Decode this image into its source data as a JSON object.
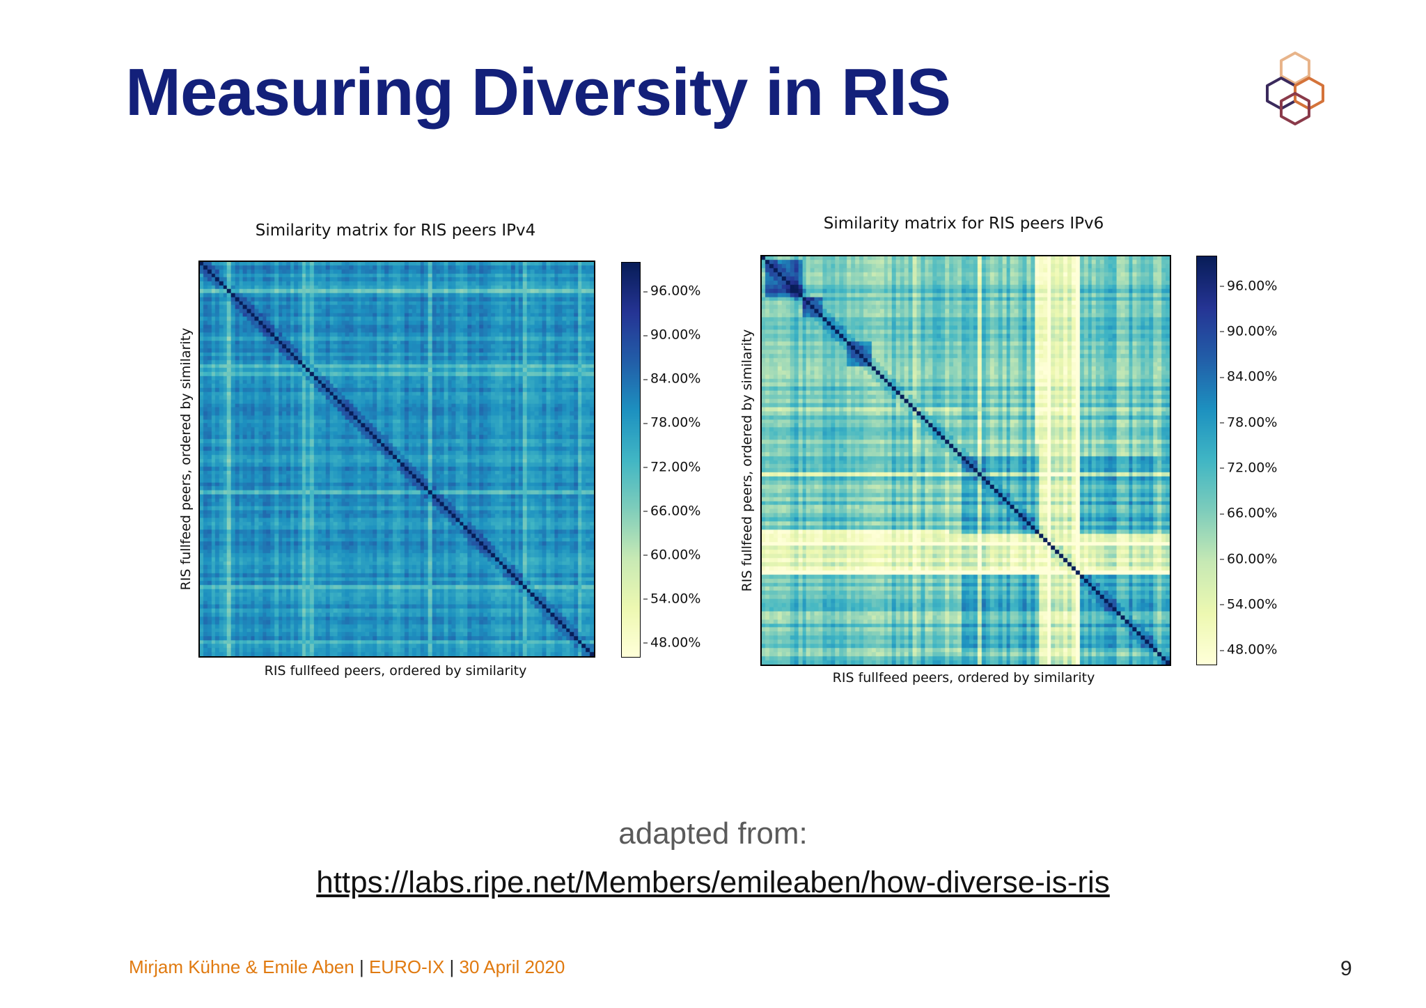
{
  "slide": {
    "title": "Measuring Diversity in RIS",
    "credit_text": "adapted from:",
    "credit_link": "https://labs.ripe.net/Members/emileaben/how-diverse-is-ris",
    "footer": {
      "authors": "Mirjam Kühne & Emile Aben",
      "separator": "|",
      "event": "EURO-IX",
      "date": "30 April 2020"
    },
    "page_number": "9",
    "logo_icon": "ripe-ncc-hexagon-logo-icon"
  },
  "chart_data": [
    {
      "type": "heatmap",
      "title": "Similarity matrix for RIS peers IPv4",
      "xlabel": "RIS fullfeed peers, ordered by similarity",
      "ylabel": "RIS fullfeed peers, ordered by similarity",
      "colormap": "YlGnBu",
      "colorbar_ticks": [
        "96.00%",
        "90.00%",
        "84.00%",
        "78.00%",
        "72.00%",
        "66.00%",
        "60.00%",
        "54.00%",
        "48.00%"
      ],
      "colorbar_tick_values": [
        96,
        90,
        84,
        78,
        72,
        66,
        60,
        54,
        48
      ],
      "colorbar_range": [
        46,
        100
      ],
      "peer_count": 100,
      "diagonal_value": 100,
      "typical_offdiagonal_range": [
        72,
        86
      ]
    },
    {
      "type": "heatmap",
      "title": "Similarity matrix for RIS peers IPv6",
      "xlabel": "RIS fullfeed peers, ordered by similarity",
      "ylabel": "RIS fullfeed peers, ordered by similarity",
      "colormap": "YlGnBu",
      "colorbar_ticks": [
        "96.00%",
        "90.00%",
        "84.00%",
        "78.00%",
        "72.00%",
        "66.00%",
        "60.00%",
        "54.00%",
        "48.00%"
      ],
      "colorbar_tick_values": [
        96,
        90,
        84,
        78,
        72,
        66,
        60,
        54,
        48
      ],
      "colorbar_range": [
        46,
        100
      ],
      "peer_count": 100,
      "diagonal_value": 100,
      "typical_offdiagonal_range": [
        55,
        92
      ]
    }
  ]
}
